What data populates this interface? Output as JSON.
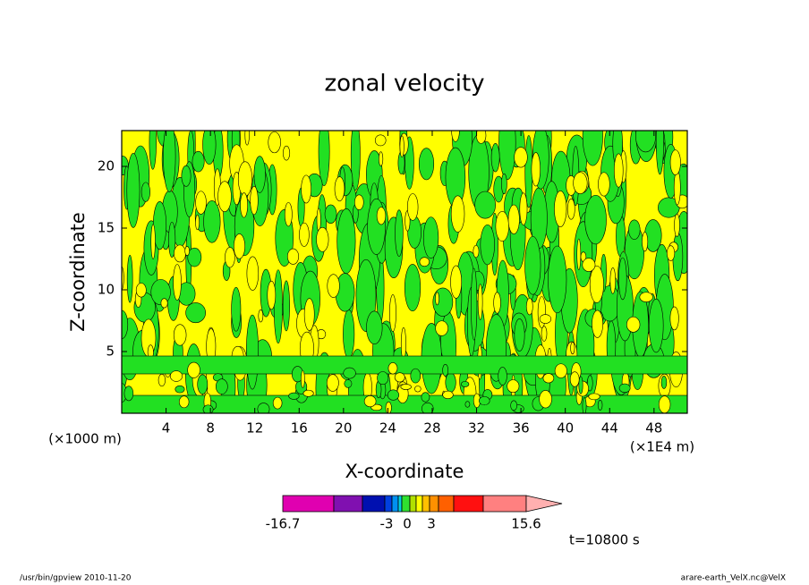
{
  "chart_data": {
    "type": "contour",
    "title": "zonal velocity",
    "x_label": "X-coordinate",
    "y_label": "Z-coordinate",
    "x_unit": "(×1E4 m)",
    "y_unit": "(×1000 m)",
    "xlim": [
      0,
      51
    ],
    "xticks": [
      4,
      8,
      12,
      16,
      20,
      24,
      28,
      32,
      36,
      40,
      44,
      48
    ],
    "ylim": [
      0,
      22.9
    ],
    "yticks": [
      5,
      10,
      15,
      20
    ],
    "colorbar": {
      "colors": [
        "#e000b0",
        "#8010b0",
        "#0010b0",
        "#0040e0",
        "#0090f0",
        "#00d0e0",
        "#30e030",
        "#b0e000",
        "#ffff00",
        "#ffc000",
        "#ff9000",
        "#ff6000",
        "#ff1010",
        "#ff8080",
        "#ffb0b0"
      ],
      "ticks": [
        -16.7,
        -3,
        0,
        3,
        15.6
      ]
    },
    "time_label": "t=10800 s",
    "footer_left": "/usr/bin/gpview   2010-11-20",
    "footer_right": "arare-earth_VelX.nc@VelX"
  }
}
